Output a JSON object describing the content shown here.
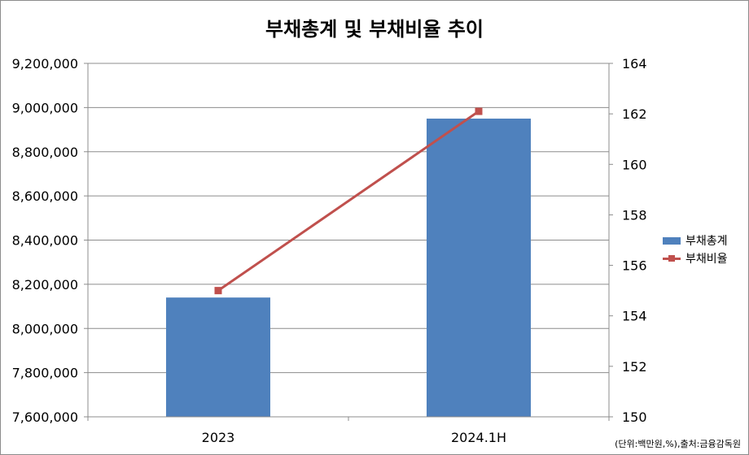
{
  "chart_data": {
    "type": "bar",
    "title": "부채총계 및 부채비율 추이",
    "categories": [
      "2023",
      "2024.1H"
    ],
    "series": [
      {
        "name": "부채총계",
        "type": "bar",
        "axis": "left",
        "color": "#4F81BD",
        "values": [
          8140000,
          8950000
        ]
      },
      {
        "name": "부채비율",
        "type": "line",
        "axis": "right",
        "color": "#C0504D",
        "values": [
          155.0,
          162.1
        ]
      }
    ],
    "y_left": {
      "min": 7600000,
      "max": 9200000,
      "ticks": [
        "7,600,000",
        "7,800,000",
        "8,000,000",
        "8,200,000",
        "8,400,000",
        "8,600,000",
        "8,800,000",
        "9,000,000",
        "9,200,000"
      ]
    },
    "y_right": {
      "min": 150,
      "max": 164,
      "ticks": [
        "150",
        "152",
        "154",
        "156",
        "158",
        "160",
        "162",
        "164"
      ]
    },
    "grid": true,
    "legend": "right",
    "note": "(단위:백만원,%),출처:금융감독원"
  }
}
